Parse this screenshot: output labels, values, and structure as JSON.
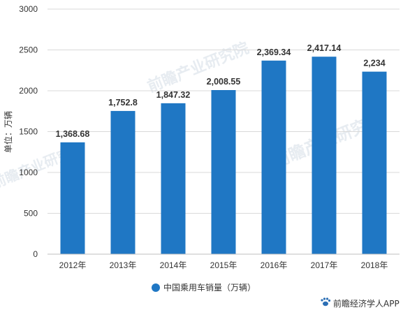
{
  "chart_data": {
    "type": "bar",
    "categories": [
      "2012年",
      "2013年",
      "2014年",
      "2015年",
      "2016年",
      "2017年",
      "2018年"
    ],
    "series": [
      {
        "name": "中国乘用车销量（万辆）",
        "values": [
          1368.68,
          1752.8,
          1847.32,
          2008.55,
          2369.34,
          2417.14,
          2234
        ],
        "labels": [
          "1,368.68",
          "1,752.8",
          "1,847.32",
          "2,008.55",
          "2,369.34",
          "2,417.14",
          "2,234"
        ],
        "color": "#1f77c4"
      }
    ],
    "ylabel": "单位：万辆",
    "ylim": [
      0,
      3000
    ],
    "yticks": [
      "0",
      "500",
      "1000",
      "1500",
      "2000",
      "2500",
      "3000"
    ],
    "grid": true,
    "legend": "bottom-center"
  },
  "watermark": "前瞻产业研究院",
  "credit": "前瞻经济学人APP",
  "colors": {
    "bar": "#1f77c4",
    "grid": "#d9d9d9",
    "axis": "#bfbfbf"
  },
  "icons": {
    "credit": "paw-logo-icon",
    "legend": "circle-marker-icon"
  }
}
